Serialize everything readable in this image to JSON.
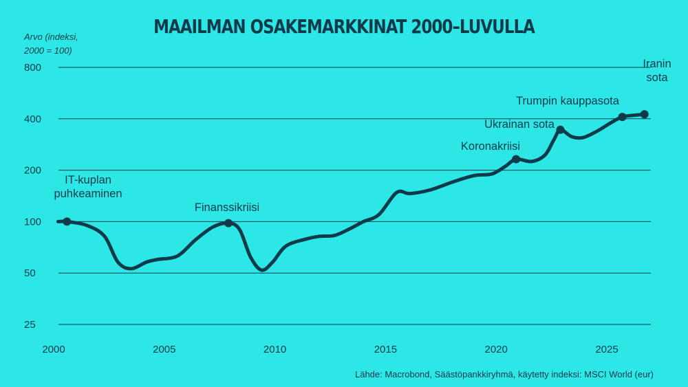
{
  "chart_data": {
    "type": "line",
    "title": "MAAILMAN OSAKEMARKKINAT 2000–LUVULLA",
    "ylabel_lines": [
      "Arvo (indeksi,",
      "2000 = 100)"
    ],
    "xlabel": "",
    "y_scale": "log",
    "ylim": [
      25,
      800
    ],
    "xlim": [
      2000,
      2027.5
    ],
    "y_ticks": [
      800,
      400,
      200,
      100,
      50,
      25
    ],
    "x_ticks": [
      2000,
      2005,
      2010,
      2015,
      2020,
      2025
    ],
    "grid": "horizontal",
    "line_color": "#0f3a4a",
    "background_color": "#2de6e6",
    "series": [
      {
        "x": [
          2000.2,
          2000.6,
          2001.5,
          2002.3,
          2002.9,
          2003.5,
          2004.2,
          2004.7,
          2005.6,
          2006.4,
          2007.2,
          2007.9,
          2008.4,
          2008.9,
          2009.4,
          2009.9,
          2010.5,
          2011.4,
          2012.0,
          2012.7,
          2013.4,
          2014.0,
          2014.7,
          2015.5,
          2016.1,
          2017.0,
          2018.0,
          2019.0,
          2019.8,
          2020.4,
          2020.9,
          2021.6,
          2022.2,
          2022.6,
          2022.9,
          2023.4,
          2023.9,
          2024.5,
          2025.2,
          2025.7,
          2026.3,
          2026.7
        ],
        "y": [
          100,
          100,
          95,
          82,
          58,
          53,
          58,
          60,
          63,
          78,
          93,
          98,
          90,
          62,
          52,
          58,
          72,
          79,
          82,
          83,
          91,
          100,
          110,
          148,
          146,
          153,
          170,
          186,
          190,
          210,
          232,
          225,
          245,
          300,
          345,
          315,
          310,
          335,
          380,
          410,
          420,
          425
        ]
      }
    ],
    "annotations": [
      {
        "x": 2000.6,
        "y": 100,
        "label_lines": [
          "IT-kuplan",
          "puhkeaminen"
        ]
      },
      {
        "x": 2007.9,
        "y": 98,
        "label_lines": [
          "Finanssikriisi"
        ]
      },
      {
        "x": 2020.9,
        "y": 232,
        "label_lines": [
          "Koronakriisi"
        ]
      },
      {
        "x": 2022.9,
        "y": 345,
        "label_lines": [
          "Ukrainan sota"
        ]
      },
      {
        "x": 2025.7,
        "y": 410,
        "label_lines": [
          "Trumpin kauppasota"
        ]
      },
      {
        "x": 2026.7,
        "y": 425,
        "label_lines": [
          "Iranin",
          "sota"
        ]
      }
    ]
  },
  "source_text": "Lähde: Macrobond, Säästöpankkiryhmä, käytetty indeksi: MSCI World (eur)"
}
